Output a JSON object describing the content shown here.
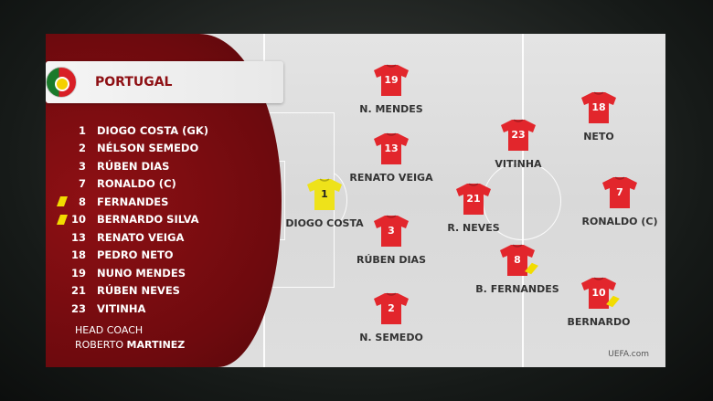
{
  "team": {
    "name": "PORTUGAL",
    "flag_icon": "portugal-flag-icon"
  },
  "roster": [
    {
      "number": "1",
      "name": "DIOGO COSTA (GK)",
      "yellow_card": false
    },
    {
      "number": "2",
      "name": "NÉLSON SEMEDO",
      "yellow_card": false
    },
    {
      "number": "3",
      "name": "RÚBEN DIAS",
      "yellow_card": false
    },
    {
      "number": "7",
      "name": "RONALDO (C)",
      "yellow_card": false
    },
    {
      "number": "8",
      "name": "FERNANDES",
      "yellow_card": true
    },
    {
      "number": "10",
      "name": "BERNARDO SILVA",
      "yellow_card": true
    },
    {
      "number": "13",
      "name": "RENATO VEIGA",
      "yellow_card": false
    },
    {
      "number": "18",
      "name": "PEDRO NETO",
      "yellow_card": false
    },
    {
      "number": "19",
      "name": "NUNO MENDES",
      "yellow_card": false
    },
    {
      "number": "21",
      "name": "RÚBEN NEVES",
      "yellow_card": false
    },
    {
      "number": "23",
      "name": "VITINHA",
      "yellow_card": false
    }
  ],
  "coach": {
    "label": "HEAD COACH",
    "first": "ROBERTO",
    "last": "MARTINEZ"
  },
  "pitch": [
    {
      "number": "19",
      "name": "N. MENDES",
      "gk": false,
      "yellow_card": false
    },
    {
      "number": "13",
      "name": "RENATO VEIGA",
      "gk": false,
      "yellow_card": false
    },
    {
      "number": "1",
      "name": "DIOGO COSTA",
      "gk": true,
      "yellow_card": false
    },
    {
      "number": "3",
      "name": "RÚBEN DIAS",
      "gk": false,
      "yellow_card": false
    },
    {
      "number": "2",
      "name": "N. SEMEDO",
      "gk": false,
      "yellow_card": false
    },
    {
      "number": "21",
      "name": "R. NEVES",
      "gk": false,
      "yellow_card": false
    },
    {
      "number": "23",
      "name": "VITINHA",
      "gk": false,
      "yellow_card": false
    },
    {
      "number": "8",
      "name": "B. FERNANDES",
      "gk": false,
      "yellow_card": true
    },
    {
      "number": "18",
      "name": "NETO",
      "gk": false,
      "yellow_card": false
    },
    {
      "number": "7",
      "name": "RONALDO (C)",
      "gk": false,
      "yellow_card": false
    },
    {
      "number": "10",
      "name": "BERNARDO",
      "gk": false,
      "yellow_card": true
    }
  ],
  "colors": {
    "team_red": "#e2262c",
    "gk_yellow": "#eee21a",
    "panel_red": "#8e1014",
    "card_yellow": "#f2dc00"
  },
  "watermark": "UEFA.com"
}
